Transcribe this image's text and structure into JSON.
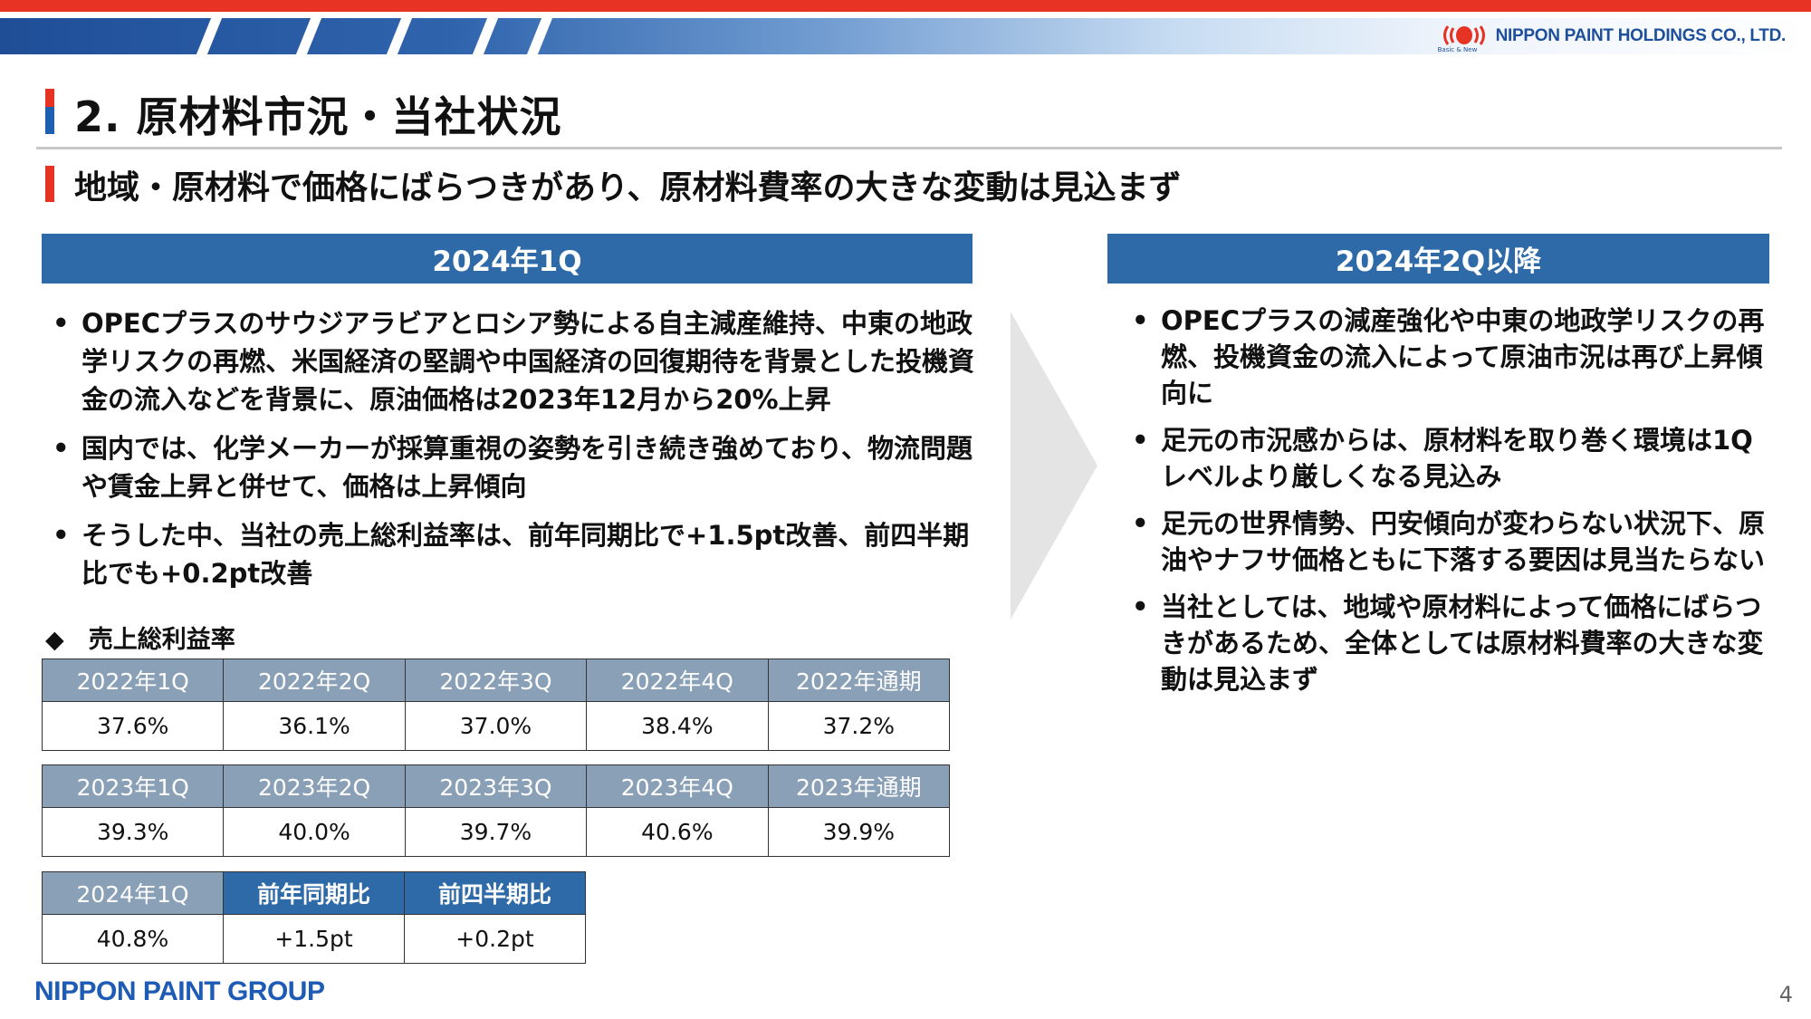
{
  "header": {
    "company": "NIPPON PAINT HOLDINGS CO., LTD.",
    "tagline": "Basic & New"
  },
  "title": "2. 原材料市況・当社状況",
  "subtitle": "地域・原材料で価格にばらつきがあり、原材料費率の大きな変動は見込まず",
  "left_panel": {
    "heading": "2024年1Q",
    "bullets": [
      "OPECプラスのサウジアラビアとロシア勢による自主減産維持、中東の地政学リスクの再燃、米国経済の堅調や中国経済の回復期待を背景とした投機資金の流入などを背景に、原油価格は2023年12月から20%上昇",
      "国内では、化学メーカーが採算重視の姿勢を引き続き強めており、物流問題や賃金上昇と併せて、価格は上昇傾向",
      "そうした中、当社の売上総利益率は、前年同期比で+1.5pt改善、前四半期比でも+0.2pt改善"
    ]
  },
  "right_panel": {
    "heading": "2024年2Q以降",
    "bullets": [
      "OPECプラスの減産強化や中東の地政学リスクの再燃、投機資金の流入によって原油市況は再び上昇傾向に",
      "足元の市況感からは、原材料を取り巻く環境は1Qレベルより厳しくなる見込み",
      "足元の世界情勢、円安傾向が変わらない状況下、原油やナフサ価格ともに下落する要因は見当たらない",
      "当社としては、地域や原材料によって価格にばらつきがあるため、全体としては原材料費率の大きな変動は見込まず"
    ]
  },
  "gross_margin": {
    "caption": "◆　売上総利益率",
    "table_2022": {
      "headers": [
        "2022年1Q",
        "2022年2Q",
        "2022年3Q",
        "2022年4Q",
        "2022年通期"
      ],
      "values": [
        "37.6%",
        "36.1%",
        "37.0%",
        "38.4%",
        "37.2%"
      ]
    },
    "table_2023": {
      "headers": [
        "2023年1Q",
        "2023年2Q",
        "2023年3Q",
        "2023年4Q",
        "2023年通期"
      ],
      "values": [
        "39.3%",
        "40.0%",
        "39.7%",
        "40.6%",
        "39.9%"
      ]
    },
    "table_2024": {
      "headers": [
        "2024年1Q",
        "前年同期比",
        "前四半期比"
      ],
      "values": [
        "40.8%",
        "+1.5pt",
        "+0.2pt"
      ]
    }
  },
  "footer": {
    "group_logo": "NIPPON PAINT GROUP",
    "page_number": "4"
  },
  "colors": {
    "accent_red": "#e63323",
    "brand_blue": "#2e6aa8",
    "table_header_gray": "#8aa0b7"
  }
}
